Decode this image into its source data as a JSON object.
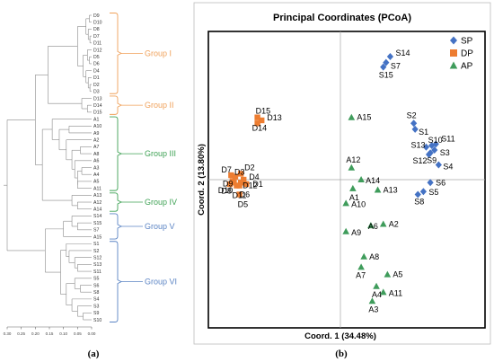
{
  "panels": {
    "a": "(a)",
    "b": "(b)"
  },
  "colors": {
    "orange": "#f0a15a",
    "green": "#3fa255",
    "blue": "#5b84c4",
    "sp": "#4472c4",
    "dp": "#ed7d31",
    "ap": "#3f9c5b"
  },
  "dendrogram": {
    "leaves": [
      "D9",
      "D10",
      "D8",
      "D7",
      "D11",
      "D12",
      "D5",
      "D6",
      "D4",
      "D1",
      "D2",
      "D3",
      "D13",
      "D14",
      "D15",
      "A1",
      "A10",
      "A9",
      "A2",
      "A7",
      "A8",
      "A6",
      "A3",
      "A4",
      "A5",
      "A11",
      "A13",
      "A12",
      "A14",
      "S14",
      "S15",
      "S7",
      "A15",
      "S1",
      "S2",
      "S12",
      "S13",
      "S11",
      "S5",
      "S6",
      "S8",
      "S4",
      "S3",
      "S9",
      "S10"
    ],
    "groups": [
      {
        "label": "Group I",
        "color": "orange"
      },
      {
        "label": "Group II",
        "color": "orange"
      },
      {
        "label": "Group III",
        "color": "green"
      },
      {
        "label": "Group IV",
        "color": "green"
      },
      {
        "label": "Group V",
        "color": "blue"
      },
      {
        "label": "Group VI",
        "color": "blue"
      }
    ],
    "scale_ticks": [
      "0.30",
      "0.25",
      "0.20",
      "0.15",
      "0.10",
      "0.05",
      "0.00"
    ]
  },
  "chart_data": [
    {
      "type": "dendrogram",
      "panel": "(a)",
      "distance_axis": {
        "range": [
          0.3,
          0.0
        ],
        "ticks": [
          0.3,
          0.25,
          0.2,
          0.15,
          0.1,
          0.05,
          0.0
        ]
      },
      "clusters": [
        {
          "name": "Group I",
          "members": [
            "D9",
            "D10",
            "D8",
            "D7",
            "D11",
            "D12",
            "D5",
            "D6",
            "D4",
            "D1",
            "D2",
            "D3"
          ]
        },
        {
          "name": "Group II",
          "members": [
            "D13",
            "D14",
            "D15"
          ]
        },
        {
          "name": "Group III",
          "members": [
            "A1",
            "A10",
            "A9",
            "A2",
            "A7",
            "A8",
            "A6",
            "A3",
            "A4",
            "A5",
            "A11"
          ]
        },
        {
          "name": "Group IV",
          "members": [
            "A13",
            "A12",
            "A14"
          ]
        },
        {
          "name": "Group V",
          "members": [
            "S14",
            "S15",
            "S7",
            "A15"
          ]
        },
        {
          "name": "Group VI",
          "members": [
            "S1",
            "S2",
            "S12",
            "S13",
            "S11",
            "S5",
            "S6",
            "S8",
            "S4",
            "S3",
            "S9",
            "S10"
          ]
        }
      ]
    },
    {
      "type": "scatter",
      "panel": "(b)",
      "title": "Principal Coordinates (PCoA)",
      "xlabel": "Coord. 1 (34.48%)",
      "ylabel": "Coord. 2 (13.80%)",
      "xlim": [
        -1,
        1
      ],
      "ylim": [
        -1,
        1
      ],
      "grid": false,
      "legend_position": "top-right",
      "series": [
        {
          "name": "SP",
          "marker": "diamond",
          "color": "sp",
          "points": [
            {
              "label": "S14",
              "x": 0.36,
              "y": 0.83
            },
            {
              "label": "S7",
              "x": 0.33,
              "y": 0.79
            },
            {
              "label": "S15",
              "x": 0.31,
              "y": 0.76
            },
            {
              "label": "S2",
              "x": 0.53,
              "y": 0.38
            },
            {
              "label": "S1",
              "x": 0.54,
              "y": 0.34
            },
            {
              "label": "S13",
              "x": 0.62,
              "y": 0.22
            },
            {
              "label": "S10",
              "x": 0.66,
              "y": 0.23
            },
            {
              "label": "S11",
              "x": 0.69,
              "y": 0.24
            },
            {
              "label": "S3",
              "x": 0.68,
              "y": 0.2
            },
            {
              "label": "S12",
              "x": 0.64,
              "y": 0.17
            },
            {
              "label": "S9",
              "x": 0.65,
              "y": 0.18
            },
            {
              "label": "S4",
              "x": 0.71,
              "y": 0.1
            },
            {
              "label": "S6",
              "x": 0.65,
              "y": -0.02
            },
            {
              "label": "S5",
              "x": 0.6,
              "y": -0.08
            },
            {
              "label": "S8",
              "x": 0.56,
              "y": -0.1
            }
          ]
        },
        {
          "name": "DP",
          "marker": "square",
          "color": "dp",
          "points": [
            {
              "label": "D15",
              "x": -0.6,
              "y": 0.42
            },
            {
              "label": "D13",
              "x": -0.57,
              "y": 0.4
            },
            {
              "label": "D14",
              "x": -0.6,
              "y": 0.38
            },
            {
              "label": "D2",
              "x": -0.72,
              "y": 0.04
            },
            {
              "label": "D7",
              "x": -0.79,
              "y": 0.03
            },
            {
              "label": "D3",
              "x": -0.76,
              "y": 0.02
            },
            {
              "label": "D4",
              "x": -0.7,
              "y": 0.0
            },
            {
              "label": "D9",
              "x": -0.78,
              "y": -0.01
            },
            {
              "label": "D12",
              "x": -0.72,
              "y": -0.02
            },
            {
              "label": "D1",
              "x": -0.68,
              "y": -0.03
            },
            {
              "label": "D10",
              "x": -0.8,
              "y": -0.03
            },
            {
              "label": "D11",
              "x": -0.75,
              "y": -0.04
            },
            {
              "label": "D6",
              "x": -0.73,
              "y": -0.04
            },
            {
              "label": "D5",
              "x": -0.73,
              "y": -0.1
            },
            {
              "label": "D8",
              "x": -0.77,
              "y": -0.02
            }
          ]
        },
        {
          "name": "AP",
          "marker": "triangle",
          "color": "ap",
          "points": [
            {
              "label": "A15",
              "x": 0.08,
              "y": 0.42
            },
            {
              "label": "A12",
              "x": 0.08,
              "y": 0.08
            },
            {
              "label": "A14",
              "x": 0.15,
              "y": 0.0
            },
            {
              "label": "A1",
              "x": 0.09,
              "y": -0.06
            },
            {
              "label": "A13",
              "x": 0.27,
              "y": -0.07
            },
            {
              "label": "A10",
              "x": 0.04,
              "y": -0.16
            },
            {
              "label": "A2",
              "x": 0.31,
              "y": -0.3
            },
            {
              "label": "A6",
              "x": 0.22,
              "y": -0.31
            },
            {
              "label": "A9",
              "x": 0.04,
              "y": -0.35
            },
            {
              "label": "A8",
              "x": 0.17,
              "y": -0.52
            },
            {
              "label": "A7",
              "x": 0.15,
              "y": -0.59
            },
            {
              "label": "A5",
              "x": 0.34,
              "y": -0.64
            },
            {
              "label": "A4",
              "x": 0.26,
              "y": -0.72
            },
            {
              "label": "A11",
              "x": 0.31,
              "y": -0.76
            },
            {
              "label": "A3",
              "x": 0.23,
              "y": -0.82
            }
          ]
        }
      ]
    }
  ]
}
